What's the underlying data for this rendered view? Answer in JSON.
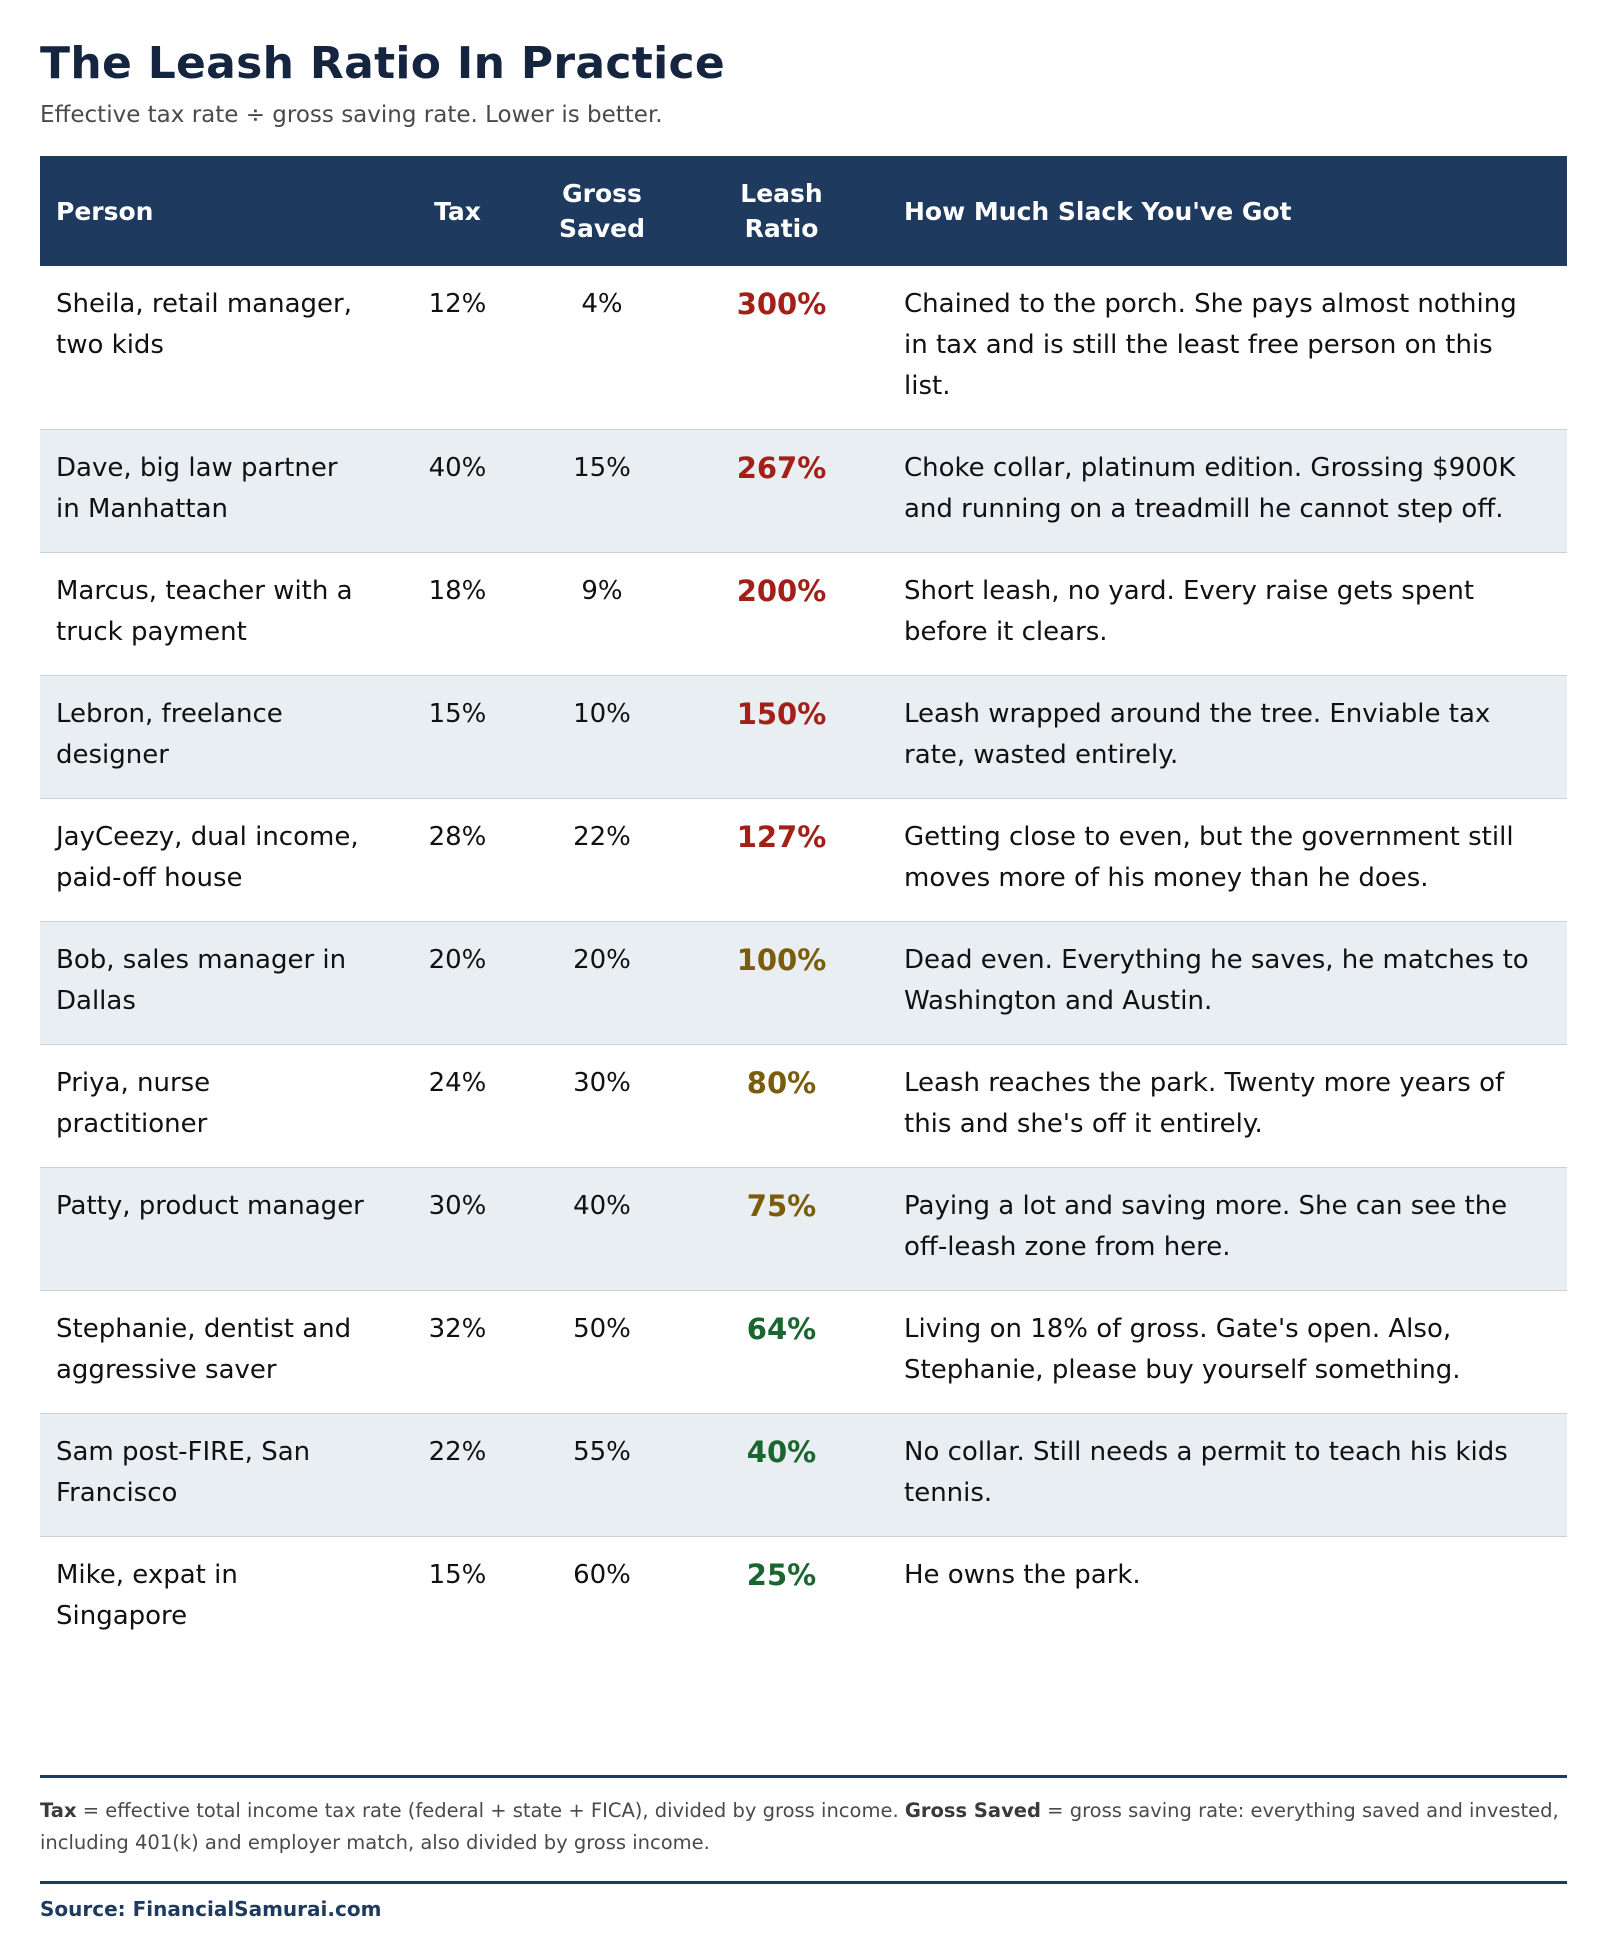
{
  "header": {
    "title": "The Leash Ratio In Practice",
    "subtitle": "Effective tax rate ÷ gross saving rate. Lower is better."
  },
  "table": {
    "columns": {
      "person": "Person",
      "tax": "Tax",
      "gross_saved_1": "Gross",
      "gross_saved_2": "Saved",
      "leash_ratio_1": "Leash",
      "leash_ratio_2": "Ratio",
      "slack": "How Much Slack You've Got"
    },
    "colors": {
      "bad": "#a32019",
      "neutral": "#7a5c0a",
      "good": "#1a6630"
    },
    "rows": [
      {
        "person": "Sheila, retail manager, two kids",
        "tax": "12%",
        "gross_saved": "4%",
        "ratio": "300%",
        "tone": "bad",
        "slack": "Chained to the porch. She pays almost nothing in tax and is still the least free person on this list."
      },
      {
        "person": "Dave, big law partner in Manhattan",
        "tax": "40%",
        "gross_saved": "15%",
        "ratio": "267%",
        "tone": "bad",
        "slack": "Choke collar, platinum edition. Grossing $900K and running on a treadmill he cannot step off."
      },
      {
        "person": "Marcus, teacher with a truck payment",
        "tax": "18%",
        "gross_saved": "9%",
        "ratio": "200%",
        "tone": "bad",
        "slack": "Short leash, no yard. Every raise gets spent before it clears."
      },
      {
        "person": "Lebron, freelance designer",
        "tax": "15%",
        "gross_saved": "10%",
        "ratio": "150%",
        "tone": "bad",
        "slack": "Leash wrapped around the tree. Enviable tax rate, wasted entirely."
      },
      {
        "person": "JayCeezy, dual income, paid-off house",
        "tax": "28%",
        "gross_saved": "22%",
        "ratio": "127%",
        "tone": "bad",
        "slack": "Getting close to even, but the government still moves more of his money than he does."
      },
      {
        "person": "Bob, sales manager in Dallas",
        "tax": "20%",
        "gross_saved": "20%",
        "ratio": "100%",
        "tone": "neutral",
        "slack": "Dead even. Everything he saves, he matches to Washington and Austin."
      },
      {
        "person": "Priya, nurse practitioner",
        "tax": "24%",
        "gross_saved": "30%",
        "ratio": "80%",
        "tone": "neutral",
        "slack": "Leash reaches the park. Twenty more years of this and she's off it entirely."
      },
      {
        "person": "Patty, product manager",
        "tax": "30%",
        "gross_saved": "40%",
        "ratio": "75%",
        "tone": "neutral",
        "slack": "Paying a lot and saving more. She can see the off-leash zone from here."
      },
      {
        "person": "Stephanie, dentist and aggressive saver",
        "tax": "32%",
        "gross_saved": "50%",
        "ratio": "64%",
        "tone": "good",
        "slack": "Living on 18% of gross. Gate's open. Also, Stephanie, please buy yourself something."
      },
      {
        "person": "Sam post-FIRE, San Francisco",
        "tax": "22%",
        "gross_saved": "55%",
        "ratio": "40%",
        "tone": "good",
        "slack": "No collar. Still needs a permit to teach his kids tennis."
      },
      {
        "person": "Mike, expat in Singapore",
        "tax": "15%",
        "gross_saved": "60%",
        "ratio": "25%",
        "tone": "good",
        "slack": "He owns the park."
      }
    ]
  },
  "footnote": {
    "tax_term": "Tax",
    "tax_def": " = effective total income tax rate (federal + state + FICA), divided by gross income. ",
    "saved_term": "Gross Saved",
    "saved_def": " = gross saving rate: everything saved and invested, including 401(k) and employer match, also divided by gross income."
  },
  "source": "Source: FinancialSamurai.com"
}
